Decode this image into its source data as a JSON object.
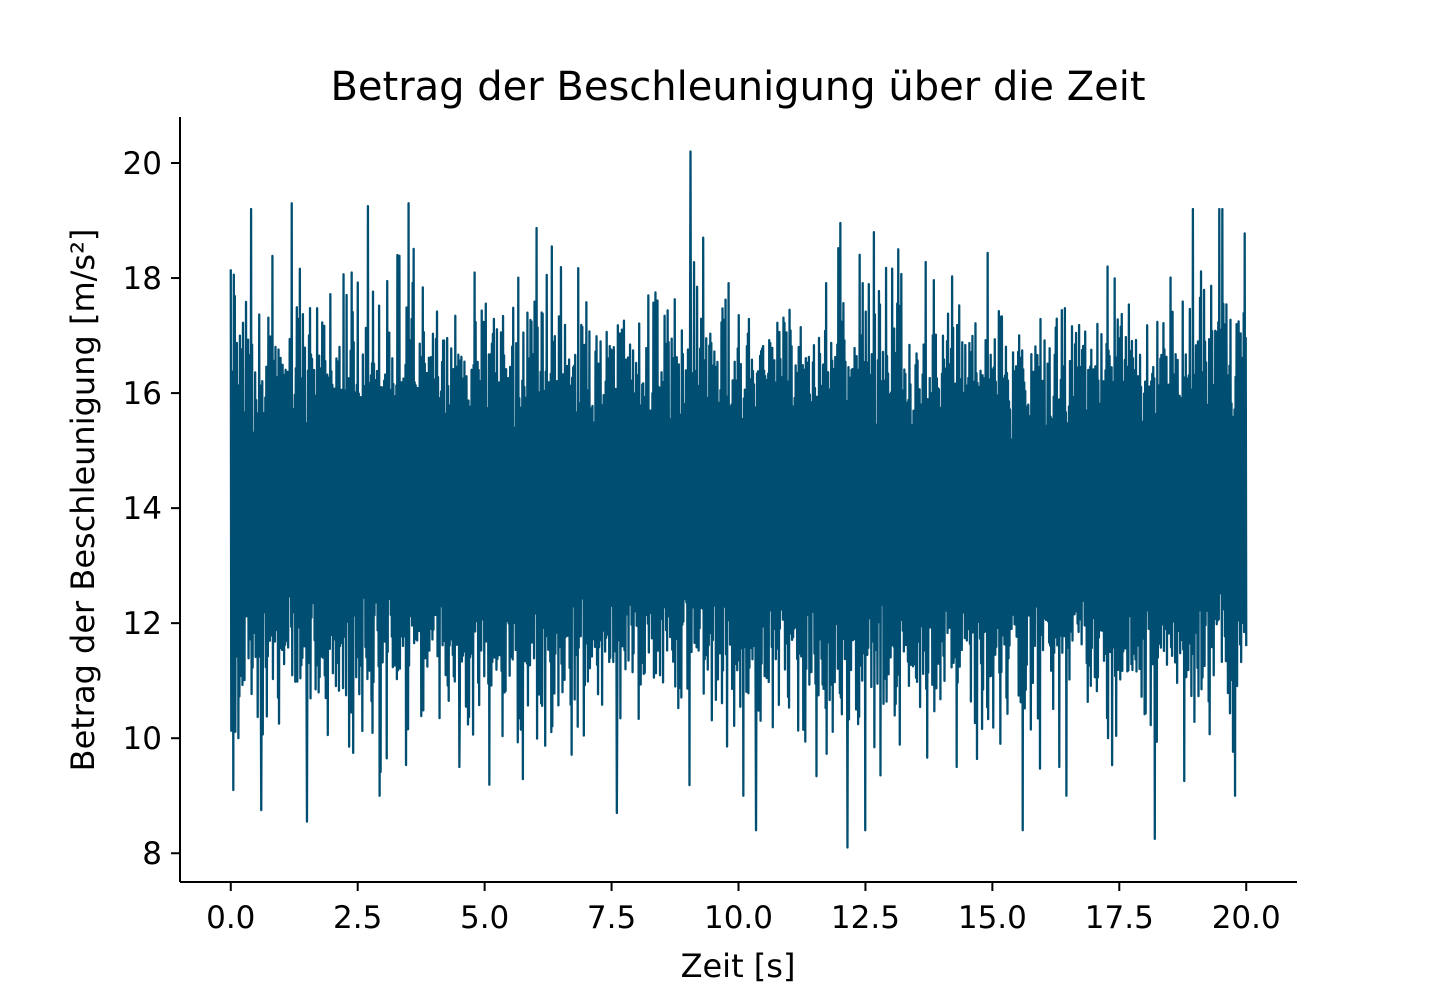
{
  "chart_data": {
    "type": "line",
    "title": "Betrag der Beschleunigung über die Zeit",
    "xlabel": "Zeit [s]",
    "ylabel": "Betrag der Beschleunigung [m/s²]",
    "xlim": [
      -1.0,
      21.0
    ],
    "ylim": [
      7.5,
      20.8
    ],
    "x_ticks": [
      0.0,
      2.5,
      5.0,
      7.5,
      10.0,
      12.5,
      15.0,
      17.5,
      20.0
    ],
    "x_tick_labels": [
      "0.0",
      "2.5",
      "5.0",
      "7.5",
      "10.0",
      "12.5",
      "15.0",
      "17.5",
      "20.0"
    ],
    "y_ticks": [
      8,
      10,
      12,
      14,
      16,
      18,
      20
    ],
    "y_tick_labels": [
      "8",
      "10",
      "12",
      "14",
      "16",
      "18",
      "20"
    ],
    "grid": false,
    "legend": "none",
    "series_color": "#004f73",
    "series": [
      {
        "x_start": 0.0,
        "x_end": 20.0,
        "samples": 2000,
        "mean": 14.0,
        "typical_range": [
          11.0,
          17.5
        ],
        "notable_points": [
          {
            "x": 0.0,
            "y": 18.15
          },
          {
            "x": 0.05,
            "y": 9.1
          },
          {
            "x": 0.4,
            "y": 19.2
          },
          {
            "x": 0.6,
            "y": 8.75
          },
          {
            "x": 1.2,
            "y": 19.3
          },
          {
            "x": 1.5,
            "y": 8.55
          },
          {
            "x": 2.7,
            "y": 19.25
          },
          {
            "x": 3.5,
            "y": 19.3
          },
          {
            "x": 4.5,
            "y": 9.5
          },
          {
            "x": 7.6,
            "y": 8.7
          },
          {
            "x": 9.05,
            "y": 20.2
          },
          {
            "x": 10.35,
            "y": 8.4
          },
          {
            "x": 12.15,
            "y": 8.1
          },
          {
            "x": 12.5,
            "y": 8.4
          },
          {
            "x": 15.6,
            "y": 8.4
          },
          {
            "x": 18.2,
            "y": 8.25
          },
          {
            "x": 18.95,
            "y": 19.2
          },
          {
            "x": 20.0,
            "y": 11.6
          }
        ]
      }
    ]
  }
}
